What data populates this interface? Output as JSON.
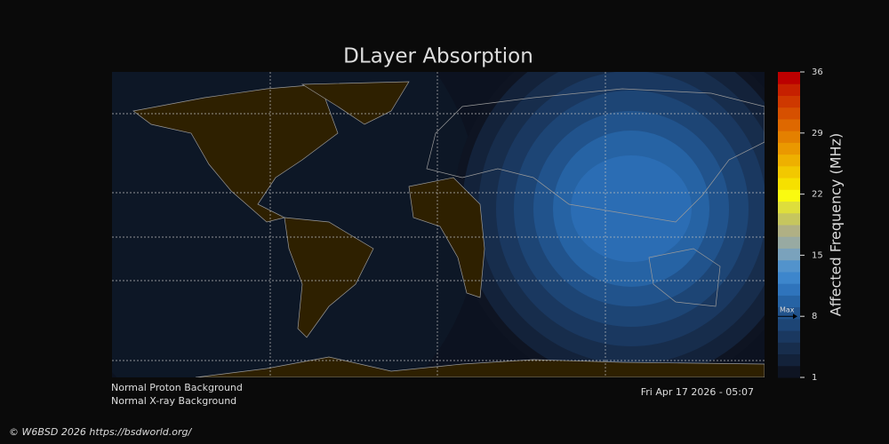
{
  "title": "DLayer Absorption",
  "colorbar": {
    "label": "Affected Frequency (MHz)",
    "lim": [
      1,
      36
    ],
    "ticks": [
      1,
      8,
      15,
      22,
      29,
      36
    ],
    "colors": [
      "#0e1422",
      "#13223a",
      "#172d4c",
      "#1a3860",
      "#1d4575",
      "#21538c",
      "#2663a4",
      "#2f74bc",
      "#3d86cc",
      "#5293cc",
      "#7aa2bc",
      "#98aaa2",
      "#b0b084",
      "#c6c65e",
      "#dede3c",
      "#fafa10",
      "#f6e000",
      "#f2c800",
      "#eeb000",
      "#ea9800",
      "#e48000",
      "#de6800",
      "#d65000",
      "#ce3800",
      "#c62000",
      "#bc0000"
    ],
    "max_marker": {
      "label": "Max",
      "value": 8
    }
  },
  "status": {
    "proton": "Normal Proton Background",
    "xray": "Normal X-ray Background",
    "timestamp": "Fri Apr 17 2026 - 05:07"
  },
  "footer": "© W6BSD 2026 https://bsdworld.org/"
}
